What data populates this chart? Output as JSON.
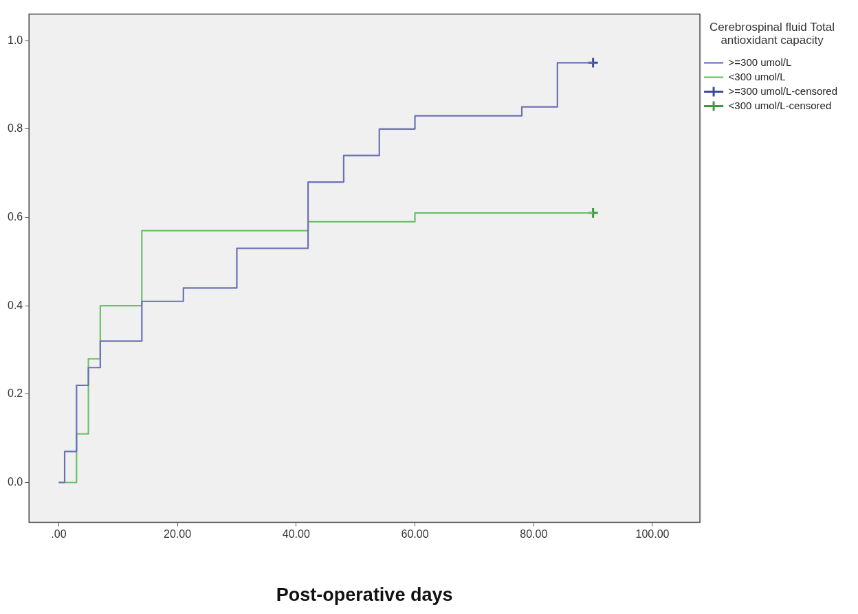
{
  "chart_data": {
    "type": "step",
    "xlabel": "Post-operative days",
    "legend_title": "Cerebrospinal fluid Total antioxidant capacity",
    "legend": "top right",
    "xlim": [
      -5,
      108
    ],
    "ylim": [
      -0.09,
      1.06
    ],
    "xticks": [
      {
        "value": 0,
        "label": ".00"
      },
      {
        "value": 20,
        "label": "20.00"
      },
      {
        "value": 40,
        "label": "40.00"
      },
      {
        "value": 60,
        "label": "60.00"
      },
      {
        "value": 80,
        "label": "80.00"
      },
      {
        "value": 100,
        "label": "100.00"
      }
    ],
    "yticks": [
      {
        "value": 0,
        "label": "0.0"
      },
      {
        "value": 0.2,
        "label": "0.2"
      },
      {
        "value": 0.4,
        "label": "0.4"
      },
      {
        "value": 0.6,
        "label": "0.6"
      },
      {
        "value": 0.8,
        "label": "0.8"
      },
      {
        "value": 1,
        "label": "1.0"
      }
    ],
    "series": [
      {
        "name": ">=300 umol/L",
        "type": "step",
        "color": "#6a72b4",
        "x": [
          0,
          1,
          3,
          5,
          7,
          14,
          21,
          30,
          42,
          48,
          54,
          60,
          78,
          84,
          90
        ],
        "values": [
          0,
          0.07,
          0.22,
          0.26,
          0.32,
          0.41,
          0.44,
          0.53,
          0.68,
          0.74,
          0.8,
          0.83,
          0.85,
          0.95,
          0.95
        ]
      },
      {
        "name": "<300 umol/L",
        "type": "step",
        "color": "#6cc06c",
        "x": [
          0,
          3,
          5,
          7,
          14,
          42,
          60,
          90
        ],
        "values": [
          0,
          0.11,
          0.28,
          0.4,
          0.57,
          0.59,
          0.61,
          0.61
        ]
      },
      {
        "name": ">=300 umol/L-censored",
        "type": "scatter",
        "marker": "cross",
        "color": "#3d4c99",
        "x": [
          90
        ],
        "values": [
          0.95
        ]
      },
      {
        "name": "<300 umol/L-censored",
        "type": "scatter",
        "marker": "cross",
        "color": "#3c9a3c",
        "x": [
          90
        ],
        "values": [
          0.61
        ]
      }
    ]
  }
}
